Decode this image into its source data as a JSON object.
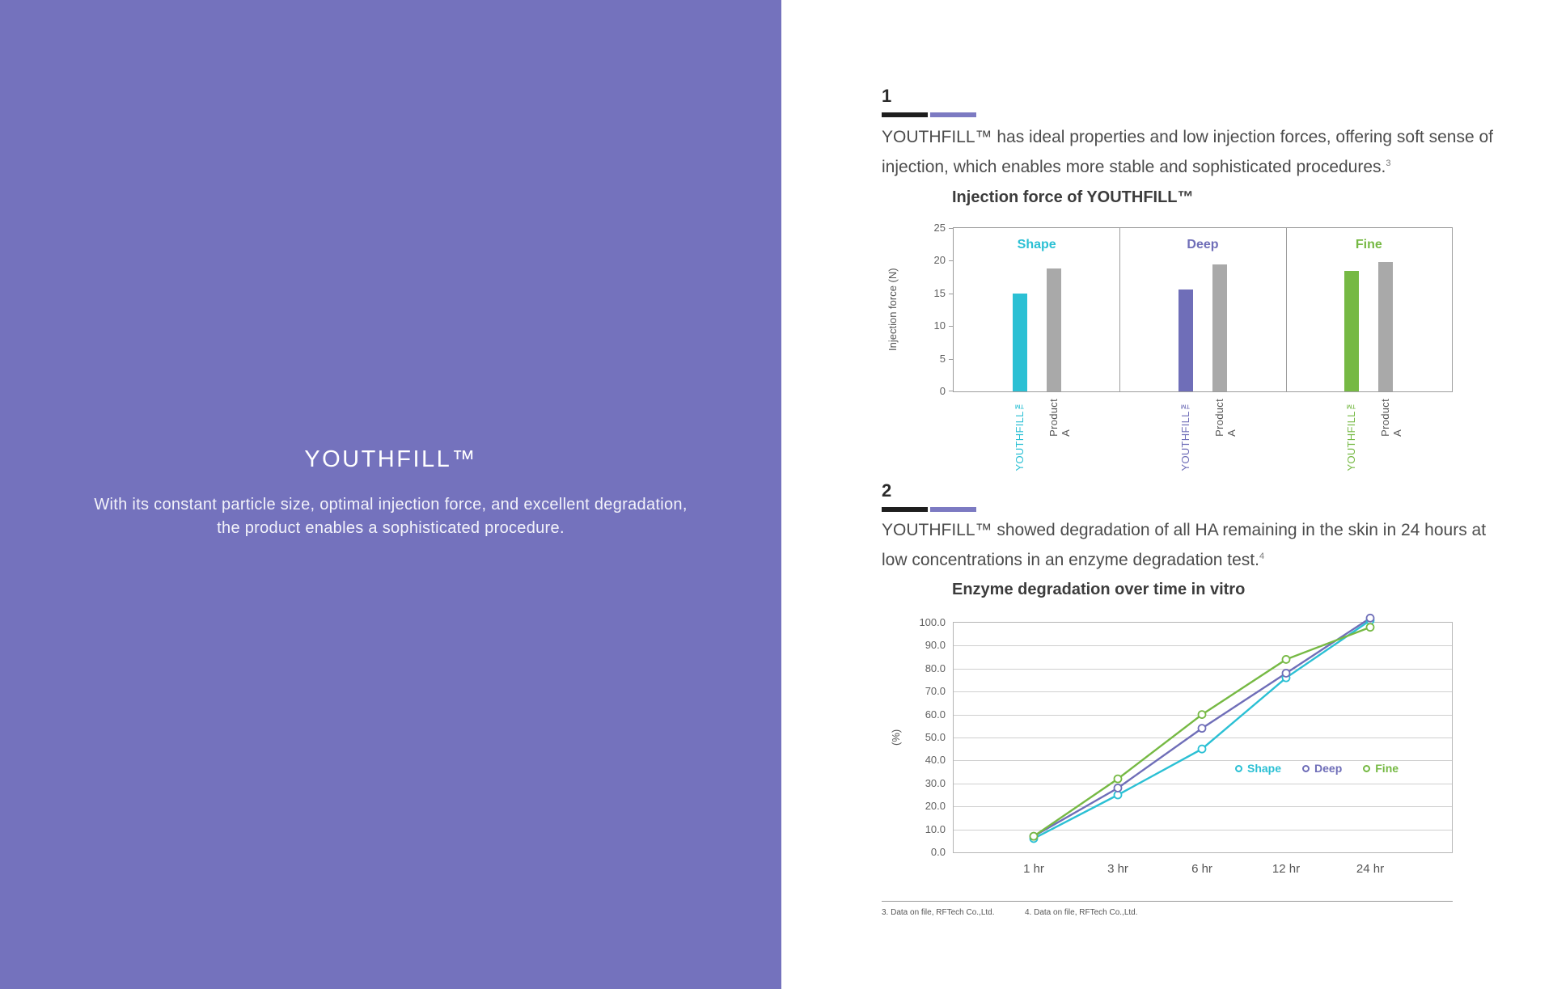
{
  "left_panel": {
    "title": "YOUTHFILL™",
    "subtitle_line1": "With its constant particle size, optimal injection force, and excellent degradation,",
    "subtitle_line2": "the product enables a sophisticated procedure.",
    "background_color": "#7472bd"
  },
  "sections": [
    {
      "number": "1",
      "text_line1": "YOUTHFILL™ has ideal properties and low injection forces, offering soft sense of",
      "text_line2": "injection, which enables more stable and sophisticated procedures.",
      "footnote_ref": "3"
    },
    {
      "number": "2",
      "text_line1": "YOUTHFILL™ showed degradation of all HA remaining in the skin in 24 hours at",
      "text_line2": "low concentrations in an enzyme degradation test.",
      "footnote_ref": "4"
    }
  ],
  "footer": {
    "note3": "3. Data on file, RFTech Co.,Ltd.",
    "note4": "4. Data on file, RFTech Co.,Ltd."
  },
  "colors": {
    "cover_purple": "#7472bd",
    "rule_black": "#1e1e1e",
    "rule_purple": "#7c7ac2",
    "shape_cyan": "#2bc0d4",
    "deep_purple": "#6f6eb8",
    "fine_green": "#76b944",
    "product_a_gray": "#a9a9a9"
  },
  "chart_data": [
    {
      "type": "bar",
      "title": "Injection force of YOUTHFILL™",
      "ylabel": "Injection force (N)",
      "ylim": [
        0,
        25
      ],
      "yticks": [
        "25",
        "20",
        "15",
        "10",
        "5",
        "0"
      ],
      "product_a_color": "#a9a9a9",
      "groups": [
        {
          "label": "Shape",
          "color": "#2bc0d4",
          "bars": [
            {
              "label": "YOUTHFILL™",
              "value": 15.0
            },
            {
              "label": "Product A",
              "value": 18.8
            }
          ]
        },
        {
          "label": "Deep",
          "color": "#6f6eb8",
          "bars": [
            {
              "label": "YOUTHFILL™",
              "value": 15.6
            },
            {
              "label": "Product A",
              "value": 19.4
            }
          ]
        },
        {
          "label": "Fine",
          "color": "#76b944",
          "bars": [
            {
              "label": "YOUTHFILL™",
              "value": 18.5
            },
            {
              "label": "Product A",
              "value": 19.8
            }
          ]
        }
      ]
    },
    {
      "type": "line",
      "title": "Enzyme degradation over time in vitro",
      "ylabel": "(%)",
      "ylim": [
        0,
        100
      ],
      "yticks": [
        "100.0",
        "90.0",
        "80.0",
        "70.0",
        "60.0",
        "50.0",
        "40.0",
        "30.0",
        "20.0",
        "10.0",
        "0.0"
      ],
      "categories": [
        "1 hr",
        "3 hr",
        "6 hr",
        "12 hr",
        "24 hr"
      ],
      "series": [
        {
          "name": "Shape",
          "color": "#2bc0d4",
          "values": [
            6,
            25,
            45,
            76,
            101
          ]
        },
        {
          "name": "Deep",
          "color": "#6f6eb8",
          "values": [
            7,
            28,
            54,
            78,
            102
          ]
        },
        {
          "name": "Fine",
          "color": "#76b944",
          "values": [
            7,
            32,
            60,
            84,
            98
          ]
        }
      ],
      "legend": [
        "Shape",
        "Deep",
        "Fine"
      ],
      "legend_position": "inside-right"
    }
  ]
}
